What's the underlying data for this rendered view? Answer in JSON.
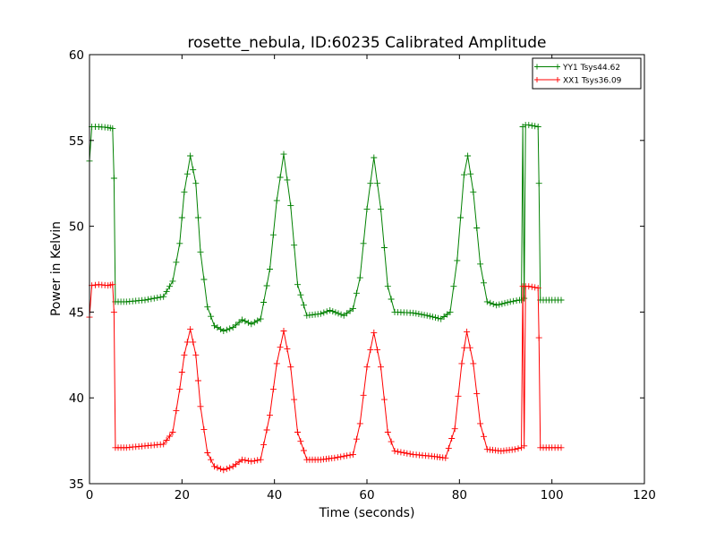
{
  "chart_data": {
    "type": "line",
    "title": "rosette_nebula, ID:60235 Calibrated Amplitude",
    "xlabel": "Time (seconds)",
    "ylabel": "Power in Kelvin",
    "xlim": [
      0,
      120
    ],
    "ylim": [
      35,
      60
    ],
    "xticks": [
      "0",
      "20",
      "40",
      "60",
      "80",
      "100",
      "120"
    ],
    "yticks": [
      "35",
      "40",
      "45",
      "50",
      "55",
      "60"
    ],
    "grid": false,
    "legend": "top-right",
    "marker": "plus",
    "series": [
      {
        "name": "YY1 Tsys44.62",
        "color": "#008000",
        "points": [
          [
            0,
            53.8
          ],
          [
            0.5,
            55.8
          ],
          [
            2,
            55.8
          ],
          [
            4,
            55.75
          ],
          [
            5,
            55.7
          ],
          [
            5.3,
            52.8
          ],
          [
            5.6,
            45.6
          ],
          [
            8,
            45.6
          ],
          [
            12,
            45.7
          ],
          [
            16,
            45.9
          ],
          [
            18,
            46.8
          ],
          [
            19.5,
            49.0
          ],
          [
            20.5,
            52.0
          ],
          [
            21.8,
            54.1
          ],
          [
            23,
            52.5
          ],
          [
            24,
            48.5
          ],
          [
            25.5,
            45.3
          ],
          [
            27,
            44.2
          ],
          [
            29,
            43.9
          ],
          [
            31,
            44.1
          ],
          [
            33,
            44.55
          ],
          [
            35,
            44.3
          ],
          [
            37,
            44.6
          ],
          [
            39,
            47.5
          ],
          [
            40.5,
            51.5
          ],
          [
            42,
            54.2
          ],
          [
            43.5,
            51.2
          ],
          [
            45,
            46.6
          ],
          [
            47,
            44.8
          ],
          [
            50,
            44.9
          ],
          [
            52,
            45.1
          ],
          [
            55,
            44.8
          ],
          [
            57,
            45.2
          ],
          [
            58.5,
            47.0
          ],
          [
            60,
            51.0
          ],
          [
            61.5,
            54.0
          ],
          [
            63,
            51.0
          ],
          [
            64.5,
            46.5
          ],
          [
            66,
            45.0
          ],
          [
            70,
            44.95
          ],
          [
            73,
            44.8
          ],
          [
            76,
            44.6
          ],
          [
            78,
            45.0
          ],
          [
            79.5,
            48.0
          ],
          [
            81,
            53.0
          ],
          [
            81.8,
            54.1
          ],
          [
            83,
            52.0
          ],
          [
            84.5,
            47.8
          ],
          [
            86,
            45.6
          ],
          [
            88,
            45.4
          ],
          [
            91,
            45.6
          ],
          [
            93,
            45.7
          ],
          [
            93.4,
            45.7
          ],
          [
            93.7,
            55.8
          ],
          [
            94.0,
            45.8
          ],
          [
            94.3,
            55.9
          ],
          [
            95,
            55.9
          ],
          [
            97,
            55.8
          ],
          [
            97.2,
            52.5
          ],
          [
            97.5,
            45.7
          ],
          [
            100,
            45.7
          ],
          [
            102,
            45.7
          ]
        ]
      },
      {
        "name": "XX1 Tsys36.09",
        "color": "#ff0000",
        "points": [
          [
            0,
            44.7
          ],
          [
            0.5,
            46.55
          ],
          [
            2,
            46.6
          ],
          [
            4,
            46.55
          ],
          [
            5,
            46.6
          ],
          [
            5.3,
            45.0
          ],
          [
            5.6,
            37.1
          ],
          [
            8,
            37.1
          ],
          [
            12,
            37.2
          ],
          [
            16,
            37.3
          ],
          [
            18,
            38.0
          ],
          [
            19.5,
            40.5
          ],
          [
            20.5,
            42.5
          ],
          [
            21.8,
            44.0
          ],
          [
            23,
            42.5
          ],
          [
            24,
            39.5
          ],
          [
            25.5,
            36.8
          ],
          [
            27,
            36.0
          ],
          [
            29,
            35.8
          ],
          [
            31,
            36.0
          ],
          [
            33,
            36.4
          ],
          [
            35,
            36.3
          ],
          [
            37,
            36.4
          ],
          [
            39,
            39.0
          ],
          [
            40.5,
            42.0
          ],
          [
            42,
            43.9
          ],
          [
            43.5,
            41.8
          ],
          [
            45,
            38.0
          ],
          [
            47,
            36.4
          ],
          [
            50,
            36.4
          ],
          [
            53,
            36.5
          ],
          [
            57,
            36.7
          ],
          [
            58.5,
            38.5
          ],
          [
            60,
            41.8
          ],
          [
            61.5,
            43.8
          ],
          [
            63,
            41.8
          ],
          [
            64.5,
            38.0
          ],
          [
            66,
            36.9
          ],
          [
            70,
            36.7
          ],
          [
            74,
            36.6
          ],
          [
            77,
            36.5
          ],
          [
            79,
            38.2
          ],
          [
            80.5,
            42.0
          ],
          [
            81.6,
            43.85
          ],
          [
            83,
            42.0
          ],
          [
            84.5,
            38.5
          ],
          [
            86,
            37.0
          ],
          [
            89,
            36.9
          ],
          [
            92,
            37.0
          ],
          [
            93.4,
            37.1
          ],
          [
            93.7,
            46.5
          ],
          [
            94.0,
            37.2
          ],
          [
            94.3,
            46.5
          ],
          [
            95,
            46.5
          ],
          [
            97,
            46.4
          ],
          [
            97.2,
            43.5
          ],
          [
            97.5,
            37.1
          ],
          [
            100,
            37.1
          ],
          [
            102,
            37.1
          ]
        ]
      }
    ]
  }
}
